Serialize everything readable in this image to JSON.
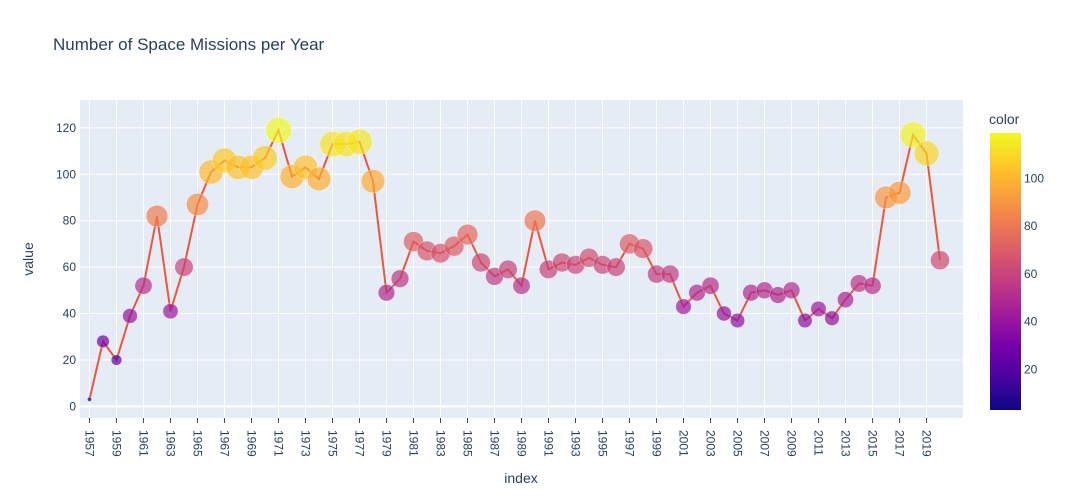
{
  "chart_data": {
    "type": "scatter",
    "title": "Number of Space Missions per Year",
    "xlabel": "index",
    "ylabel": "value",
    "ylim": [
      -5,
      132
    ],
    "y_ticks": [
      0,
      20,
      40,
      60,
      80,
      100,
      120
    ],
    "x_range": [
      1956.3,
      2021.7
    ],
    "x_tick_labels": [
      "1957",
      "1959",
      "1961",
      "1963",
      "1965",
      "1967",
      "1969",
      "1971",
      "1973",
      "1975",
      "1977",
      "1979",
      "1981",
      "1983",
      "1985",
      "1987",
      "1989",
      "1991",
      "1993",
      "1995",
      "1997",
      "1999",
      "2001",
      "2003",
      "2005",
      "2007",
      "2009",
      "2011",
      "2013",
      "2015",
      "2017",
      "2019"
    ],
    "x": [
      1957,
      1958,
      1959,
      1960,
      1961,
      1962,
      1963,
      1964,
      1965,
      1966,
      1967,
      1968,
      1969,
      1970,
      1971,
      1972,
      1973,
      1974,
      1975,
      1976,
      1977,
      1978,
      1979,
      1980,
      1981,
      1982,
      1983,
      1984,
      1985,
      1986,
      1987,
      1988,
      1989,
      1990,
      1991,
      1992,
      1993,
      1994,
      1995,
      1996,
      1997,
      1998,
      1999,
      2000,
      2001,
      2002,
      2003,
      2004,
      2005,
      2006,
      2007,
      2008,
      2009,
      2010,
      2011,
      2012,
      2013,
      2014,
      2015,
      2016,
      2017,
      2018,
      2019,
      2020
    ],
    "values": [
      3,
      28,
      20,
      39,
      52,
      82,
      41,
      60,
      87,
      101,
      106,
      103,
      103,
      107,
      119,
      99,
      103,
      98,
      113,
      113,
      114,
      97,
      49,
      55,
      71,
      67,
      66,
      69,
      74,
      62,
      56,
      59,
      52,
      80,
      59,
      62,
      61,
      64,
      61,
      60,
      70,
      68,
      57,
      57,
      43,
      49,
      52,
      40,
      37,
      49,
      50,
      48,
      50,
      37,
      42,
      38,
      46,
      53,
      52,
      90,
      92,
      117,
      109,
      63
    ],
    "color_title": "color",
    "colorbar_ticks": [
      20,
      40,
      60,
      80,
      100
    ],
    "color_range": [
      3,
      119
    ],
    "colorscale": [
      "#0d0887",
      "#46039f",
      "#7201a8",
      "#9c179e",
      "#bd3786",
      "#d8576b",
      "#ed7953",
      "#fb9f3a",
      "#fdca26",
      "#f0f921"
    ],
    "line_color": "#ef553b",
    "grid": true,
    "background_color": "#e5ecf6"
  }
}
